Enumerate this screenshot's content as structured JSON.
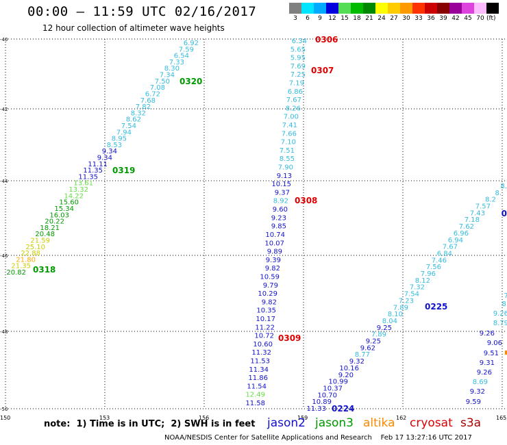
{
  "header": {
    "title": "00:00 – 11:59 UTC 02/16/2017",
    "subtitle": "12 hour collection of altimeter wave heights"
  },
  "scale": {
    "unit": "(ft)",
    "bins": [
      {
        "label": "3",
        "color": "#808080"
      },
      {
        "label": "6",
        "color": "#00e5ff"
      },
      {
        "label": "9",
        "color": "#00aaff"
      },
      {
        "label": "12",
        "color": "#0000dd"
      },
      {
        "label": "15",
        "color": "#55dd55"
      },
      {
        "label": "18",
        "color": "#00bb00"
      },
      {
        "label": "21",
        "color": "#008800"
      },
      {
        "label": "24",
        "color": "#ffff00"
      },
      {
        "label": "27",
        "color": "#ffcc00"
      },
      {
        "label": "30",
        "color": "#ff9900"
      },
      {
        "label": "33",
        "color": "#ff3300"
      },
      {
        "label": "36",
        "color": "#cc0000"
      },
      {
        "label": "39",
        "color": "#880000"
      },
      {
        "label": "42",
        "color": "#990099"
      },
      {
        "label": "45",
        "color": "#dd44dd"
      },
      {
        "label": "70",
        "color": "#ffbbff"
      },
      {
        "label": "",
        "color": "#000000"
      }
    ]
  },
  "map": {
    "lon_ticks": [
      "150",
      "153",
      "156",
      "159",
      "162",
      "165"
    ],
    "lat_ticks": [
      "-40",
      "-42",
      "-44",
      "-46",
      "-48",
      "-50"
    ]
  },
  "colors": {
    "c6": "#33bbdd",
    "c9": "#1111cc",
    "c15": "#66dd44",
    "c18": "#009900",
    "c21": "#cccc00",
    "c24": "#ffaa00",
    "red": "#dd0000",
    "blue": "#1111cc",
    "green": "#009900",
    "orange": "#ff8800",
    "dkred": "#bb0000"
  },
  "passes": [
    {
      "name": "0306",
      "color": "red"
    },
    {
      "name": "0307",
      "color": "red"
    },
    {
      "name": "0308",
      "color": "red"
    },
    {
      "name": "0309",
      "color": "red"
    },
    {
      "name": "0318",
      "color": "green"
    },
    {
      "name": "0319",
      "color": "green"
    },
    {
      "name": "0320",
      "color": "green"
    },
    {
      "name": "0224",
      "color": "blue"
    },
    {
      "name": "0225",
      "color": "blue"
    }
  ],
  "tracks": {
    "green_track": [
      [
        "6.92",
        "c6"
      ],
      [
        "7.59",
        "c6"
      ],
      [
        "6.54",
        "c6"
      ],
      [
        "7.33",
        "c6"
      ],
      [
        "8.30",
        "c6"
      ],
      [
        "7.34",
        "c6"
      ],
      [
        "7.50",
        "c6"
      ],
      [
        "7.08",
        "c6"
      ],
      [
        "6.72",
        "c6"
      ],
      [
        "7.68",
        "c6"
      ],
      [
        "7.82",
        "c6"
      ],
      [
        "8.32",
        "c6"
      ],
      [
        "8.62",
        "c6"
      ],
      [
        "7.54",
        "c6"
      ],
      [
        "7.94",
        "c6"
      ],
      [
        "8.95",
        "c6"
      ],
      [
        "8.53",
        "c6"
      ],
      [
        "9.34",
        "c9"
      ],
      [
        "9.34",
        "c9"
      ],
      [
        "11.11",
        "c9"
      ],
      [
        "11.35",
        "c9"
      ],
      [
        "11.35",
        "c9"
      ],
      [
        "13.61",
        "c15"
      ],
      [
        "13.32",
        "c15"
      ],
      [
        "14.22",
        "c15"
      ],
      [
        "15.60",
        "c18"
      ],
      [
        "15.34",
        "c18"
      ],
      [
        "16.03",
        "c18"
      ],
      [
        "20.22",
        "c18"
      ],
      [
        "18.21",
        "c18"
      ],
      [
        "20.48",
        "c18"
      ],
      [
        "21.59",
        "c21"
      ],
      [
        "25.10",
        "c21"
      ],
      [
        "22.88",
        "c21"
      ],
      [
        "21.80",
        "c24"
      ],
      [
        "21.35",
        "c21"
      ],
      [
        "20.82",
        "c18"
      ]
    ],
    "red_track": [
      [
        "6.34",
        "c6"
      ],
      [
        "5.65",
        "c6"
      ],
      [
        "5.95",
        "c6"
      ],
      [
        "7.69",
        "c6"
      ],
      [
        "7.25",
        "c6"
      ],
      [
        "7.19",
        "c6"
      ],
      [
        "6.86",
        "c6"
      ],
      [
        "7.67",
        "c6"
      ],
      [
        "8.26",
        "c6"
      ],
      [
        "7.00",
        "c6"
      ],
      [
        "7.41",
        "c6"
      ],
      [
        "7.66",
        "c6"
      ],
      [
        "7.10",
        "c6"
      ],
      [
        "7.51",
        "c6"
      ],
      [
        "8.55",
        "c6"
      ],
      [
        "7.90",
        "c6"
      ],
      [
        "9.13",
        "c9"
      ],
      [
        "10.15",
        "c9"
      ],
      [
        "9.37",
        "c9"
      ],
      [
        "8.92",
        "c6"
      ],
      [
        "9.60",
        "c9"
      ],
      [
        "9.23",
        "c9"
      ],
      [
        "9.85",
        "c9"
      ],
      [
        "10.74",
        "c9"
      ],
      [
        "10.07",
        "c9"
      ],
      [
        "9.89",
        "c9"
      ],
      [
        "9.39",
        "c9"
      ],
      [
        "9.82",
        "c9"
      ],
      [
        "10.59",
        "c9"
      ],
      [
        "9.79",
        "c9"
      ],
      [
        "10.29",
        "c9"
      ],
      [
        "9.82",
        "c9"
      ],
      [
        "10.35",
        "c9"
      ],
      [
        "10.17",
        "c9"
      ],
      [
        "11.22",
        "c9"
      ],
      [
        "10.72",
        "c9"
      ],
      [
        "10.60",
        "c9"
      ],
      [
        "11.32",
        "c9"
      ],
      [
        "11.53",
        "c9"
      ],
      [
        "11.34",
        "c9"
      ],
      [
        "11.86",
        "c9"
      ],
      [
        "11.54",
        "c9"
      ],
      [
        "12.49",
        "c15"
      ],
      [
        "11.58",
        "c9"
      ]
    ],
    "blue_track": [
      [
        "8.",
        "c6"
      ],
      [
        "8.",
        "c6"
      ],
      [
        "8.2",
        "c6"
      ],
      [
        "7.57",
        "c6"
      ],
      [
        "7.43",
        "c6"
      ],
      [
        "7.18",
        "c6"
      ],
      [
        "7.62",
        "c6"
      ],
      [
        "6.96",
        "c6"
      ],
      [
        "6.94",
        "c6"
      ],
      [
        "7.67",
        "c6"
      ],
      [
        "6.84",
        "c6"
      ],
      [
        "7.46",
        "c6"
      ],
      [
        "7.56",
        "c6"
      ],
      [
        "7.96",
        "c6"
      ],
      [
        "8.12",
        "c6"
      ],
      [
        "7.32",
        "c6"
      ],
      [
        "7.54",
        "c6"
      ],
      [
        "7.23",
        "c6"
      ],
      [
        "7.89",
        "c6"
      ],
      [
        "8.10",
        "c6"
      ],
      [
        "8.04",
        "c6"
      ],
      [
        "9.25",
        "c9"
      ],
      [
        "7.89",
        "c6"
      ],
      [
        "9.25",
        "c9"
      ],
      [
        "9.62",
        "c9"
      ],
      [
        "8.77",
        "c6"
      ],
      [
        "9.32",
        "c9"
      ],
      [
        "10.16",
        "c9"
      ],
      [
        "9.20",
        "c9"
      ],
      [
        "10.99",
        "c9"
      ],
      [
        "10.37",
        "c9"
      ],
      [
        "10.70",
        "c9"
      ],
      [
        "10.89",
        "c9"
      ],
      [
        "11.33",
        "c9"
      ]
    ],
    "right_track": [
      [
        "7",
        "c6"
      ],
      [
        "8.",
        "c6"
      ],
      [
        "9.26",
        "c6"
      ],
      [
        "8.79",
        "c6"
      ],
      [
        "9.26",
        "c9"
      ],
      [
        "9.06",
        "c9"
      ],
      [
        "9.51",
        "c9"
      ],
      [
        "9.31",
        "c9"
      ],
      [
        "9.26",
        "c9"
      ],
      [
        "8.69",
        "c6"
      ],
      [
        "9.32",
        "c9"
      ],
      [
        "9.59",
        "c9"
      ]
    ]
  },
  "note": "note:  1) Time is in UTC;  2) SWH is in feet",
  "satellites": [
    {
      "name": "jason2",
      "color": "#1111cc"
    },
    {
      "name": "jason3",
      "color": "#009900"
    },
    {
      "name": "altika",
      "color": "#ff8800"
    },
    {
      "name": "cryosat",
      "color": "#dd0000"
    },
    {
      "name": "s3a",
      "color": "#aa0000"
    }
  ],
  "footer": "NOAA/NESDIS Center for Satellite Applications and Research    Feb 17 13:27:16 UTC 2017"
}
